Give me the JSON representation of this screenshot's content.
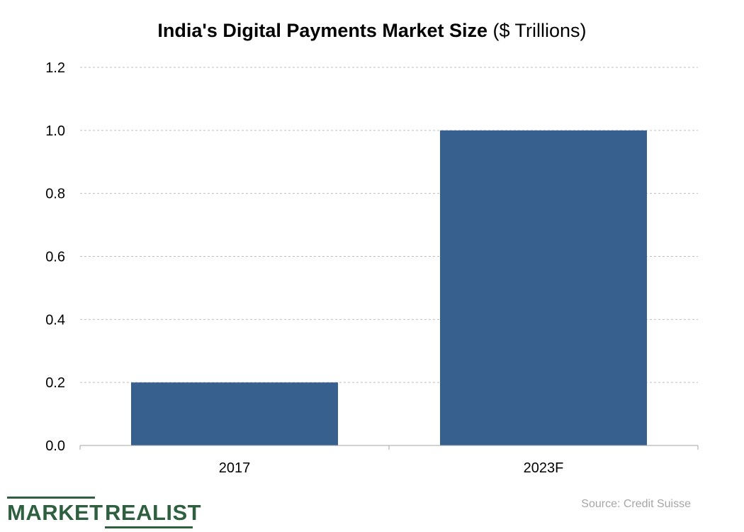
{
  "title": {
    "bold": "India's Digital Payments Market Size",
    "regular": "($ Trillions)"
  },
  "source": "Source: Credit Suisse",
  "logo": {
    "word1": "MARKET",
    "word2": "REALIST",
    "color": "#2e5f3f"
  },
  "colors": {
    "bar": "#37608f",
    "grid": "#bfbfbf",
    "axis": "#a6a6a6",
    "text": "#000000"
  },
  "chart_data": {
    "type": "bar",
    "title": "India's Digital Payments Market Size ($ Trillions)",
    "categories": [
      "2017",
      "2023F"
    ],
    "values": [
      0.2,
      1.0
    ],
    "ylim": [
      0,
      1.2
    ],
    "yticks": [
      "0.0",
      "0.2",
      "0.4",
      "0.6",
      "0.8",
      "1.0",
      "1.2"
    ],
    "grid": true,
    "xlabel": "",
    "ylabel": ""
  }
}
